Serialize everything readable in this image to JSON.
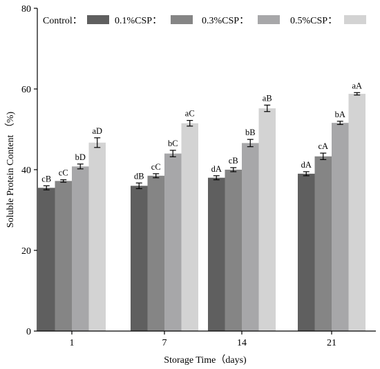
{
  "chart_data": {
    "type": "bar",
    "xlabel": "Storage Time（days)",
    "ylabel": "Soluble Protein Content （%)",
    "ylim": [
      0,
      80
    ],
    "yticks": [
      0,
      20,
      40,
      60,
      80
    ],
    "categories": [
      "1",
      "7",
      "14",
      "21"
    ],
    "grid": false,
    "legend_position": "top",
    "series": [
      {
        "name": "Control",
        "legend_label": "Control：",
        "color": "#5f5f5f",
        "values": [
          35.5,
          36.0,
          38.0,
          39.0
        ],
        "errors": [
          0.5,
          0.7,
          0.5,
          0.5
        ],
        "labels": [
          "cB",
          "dB",
          "dA",
          "dA"
        ]
      },
      {
        "name": "0.1%CSP",
        "legend_label": "0.1%CSP：",
        "color": "#858585",
        "values": [
          37.2,
          38.5,
          40.0,
          43.3
        ],
        "errors": [
          0.3,
          0.5,
          0.5,
          0.8
        ],
        "labels": [
          "cC",
          "cC",
          "cB",
          "cA"
        ]
      },
      {
        "name": "0.3%CSP",
        "legend_label": "0.3%CSP：",
        "color": "#a7a7a9",
        "values": [
          40.8,
          44.0,
          46.6,
          51.6
        ],
        "errors": [
          0.6,
          0.8,
          0.9,
          0.4
        ],
        "labels": [
          "bD",
          "bC",
          "bB",
          "bA"
        ]
      },
      {
        "name": "0.5%CSP",
        "legend_label": "0.5%CSP：",
        "color": "#d3d3d3",
        "values": [
          46.7,
          51.5,
          55.2,
          58.8
        ],
        "errors": [
          1.2,
          0.7,
          0.8,
          0.3
        ],
        "labels": [
          "aD",
          "aC",
          "aB",
          "aA"
        ]
      }
    ]
  }
}
